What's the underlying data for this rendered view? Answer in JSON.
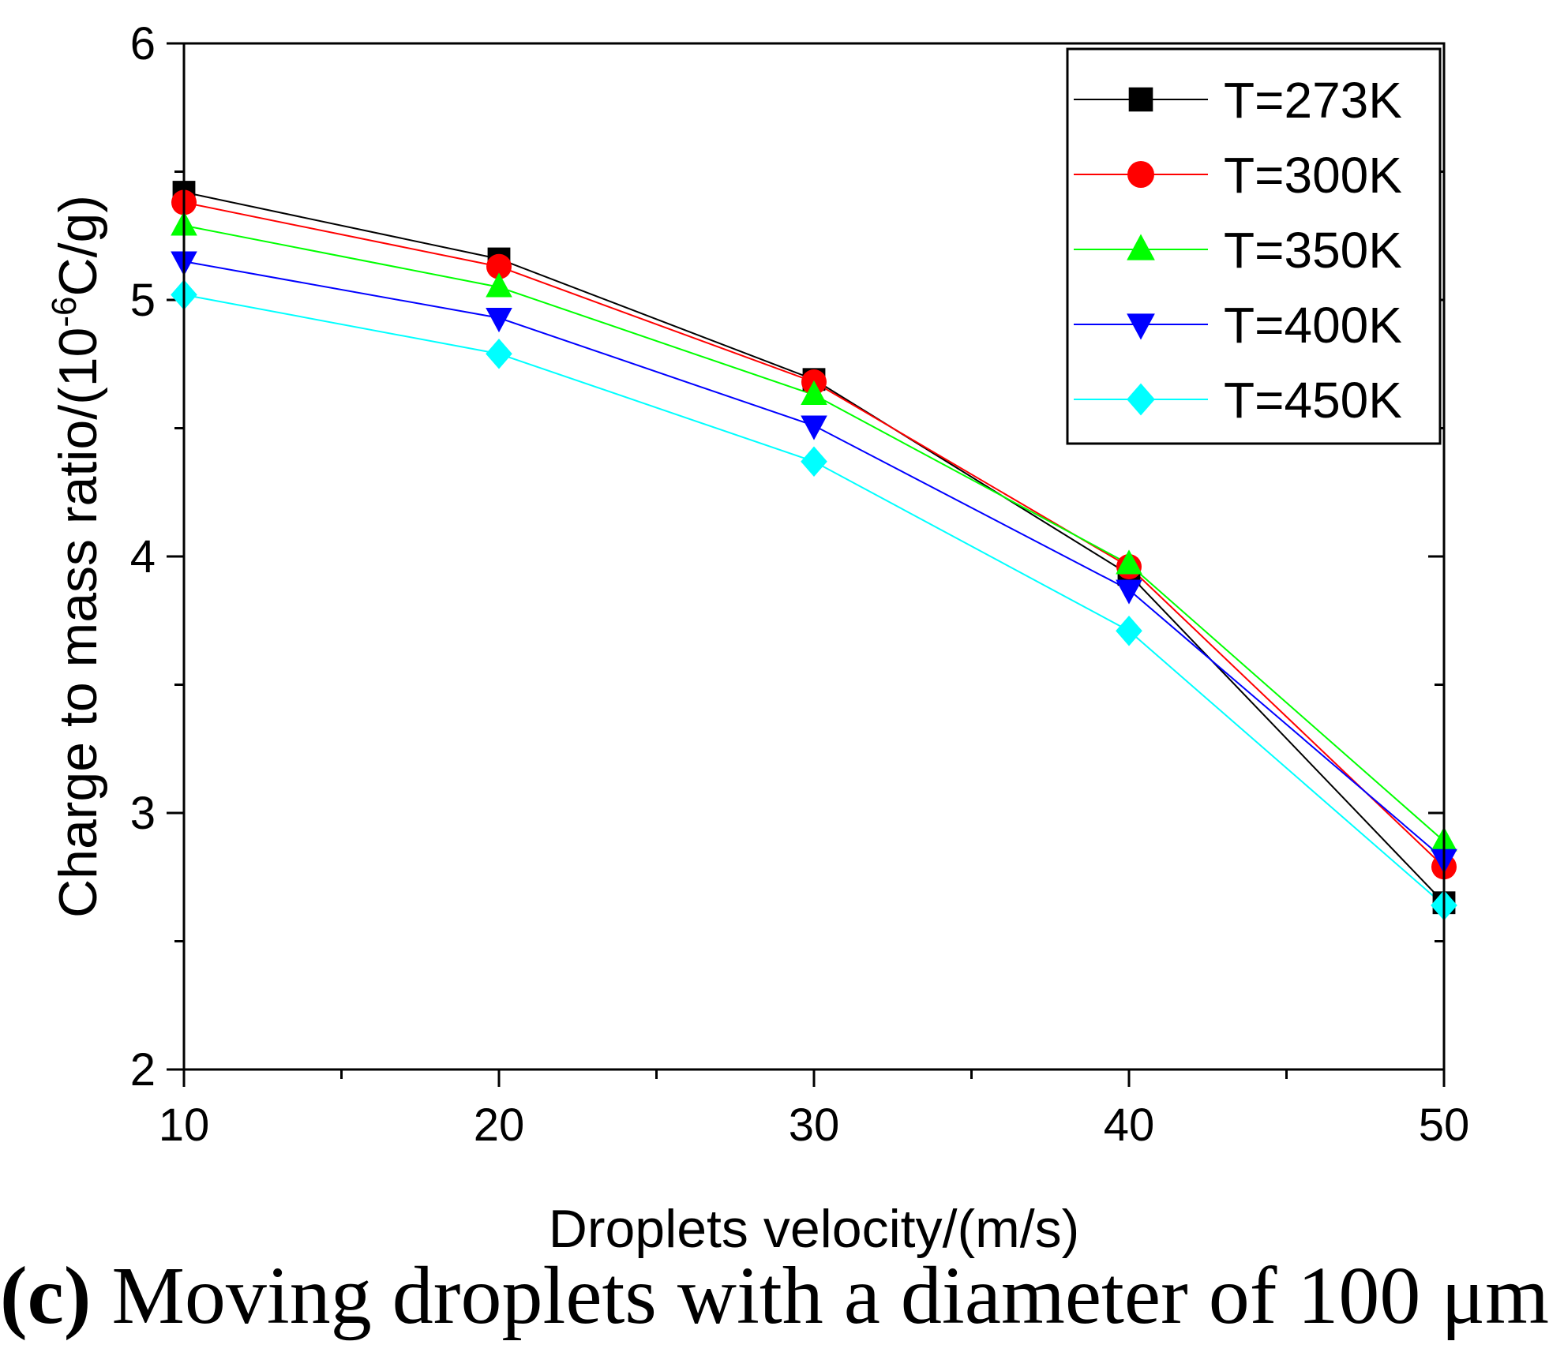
{
  "chart_data": {
    "type": "line",
    "title": "",
    "xlabel": "Droplets velocity/(m/s)",
    "ylabel_prefix": "Charge to mass ratio/(10",
    "ylabel_exp": "-6",
    "ylabel_suffix": "C/g)",
    "xlim": [
      10,
      50
    ],
    "ylim": [
      2,
      6
    ],
    "x_ticks": [
      "10",
      "20",
      "30",
      "40",
      "50"
    ],
    "y_ticks": [
      "2",
      "3",
      "4",
      "5",
      "6"
    ],
    "x": [
      10,
      20,
      30,
      40,
      50
    ],
    "legend_position": "top-right",
    "grid": false,
    "series": [
      {
        "name": "T=273K",
        "color": "#000000",
        "marker": "square",
        "values": [
          5.42,
          5.16,
          4.69,
          3.93,
          2.65
        ]
      },
      {
        "name": "T=300K",
        "color": "#ff0000",
        "marker": "circle",
        "values": [
          5.38,
          5.13,
          4.68,
          3.96,
          2.79
        ]
      },
      {
        "name": "T=350K",
        "color": "#00ff00",
        "marker": "triangle-up",
        "values": [
          5.29,
          5.05,
          4.63,
          3.97,
          2.89
        ]
      },
      {
        "name": "T=400K",
        "color": "#0000ff",
        "marker": "triangle-down",
        "values": [
          5.15,
          4.93,
          4.51,
          3.87,
          2.82
        ]
      },
      {
        "name": "T=450K",
        "color": "#00ffff",
        "marker": "diamond",
        "values": [
          5.02,
          4.79,
          4.37,
          3.71,
          2.64
        ]
      }
    ]
  },
  "caption": {
    "label": "(c)",
    "text": " Moving droplets with a diameter of 100 μm"
  }
}
